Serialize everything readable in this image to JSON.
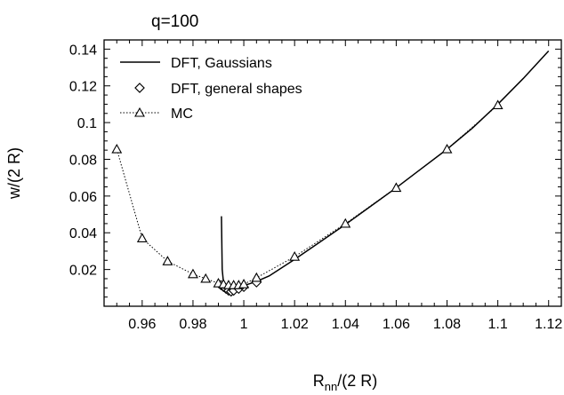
{
  "chart_data": {
    "type": "line",
    "title": "q=100",
    "xlabel_main": "R",
    "xlabel_sub": "nn",
    "xlabel_rest": "/(2 R)",
    "ylabel": "w/(2 R)",
    "xlim": [
      0.945,
      1.125
    ],
    "ylim": [
      0.0,
      0.145
    ],
    "x_ticks": [
      0.96,
      0.98,
      1.0,
      1.02,
      1.04,
      1.06,
      1.08,
      1.1,
      1.12
    ],
    "x_tick_labels": [
      "0.96",
      "0.98",
      "1",
      "1.02",
      "1.04",
      "1.06",
      "1.08",
      "1.1",
      "1.12"
    ],
    "y_ticks": [
      0.02,
      0.04,
      0.06,
      0.08,
      0.1,
      0.12,
      0.14
    ],
    "y_tick_labels": [
      "0.02",
      "0.04",
      "0.06",
      "0.08",
      "0.1",
      "0.12",
      "0.14"
    ],
    "grid": false,
    "legend_position": "top-left",
    "series": [
      {
        "name": "DFT, Gaussians",
        "style": "solid",
        "marker": "none",
        "x": [
          0.9912,
          0.9915,
          0.992,
          0.993,
          0.995,
          0.998,
          1.0,
          1.005,
          1.01,
          1.02,
          1.03,
          1.04,
          1.05,
          1.06,
          1.07,
          1.08,
          1.09,
          1.1,
          1.11,
          1.12
        ],
        "y": [
          0.049,
          0.02,
          0.013,
          0.0105,
          0.0098,
          0.0103,
          0.0112,
          0.0135,
          0.0165,
          0.0255,
          0.035,
          0.0445,
          0.0545,
          0.0645,
          0.075,
          0.0855,
          0.097,
          0.11,
          0.124,
          0.139
        ]
      },
      {
        "name": "DFT, general shapes",
        "style": "none",
        "marker": "diamond",
        "x": [
          0.991,
          0.992,
          0.993,
          0.994,
          0.995,
          0.996,
          0.998,
          1.0,
          1.005
        ],
        "y": [
          0.0115,
          0.0105,
          0.0095,
          0.0085,
          0.008,
          0.0085,
          0.0095,
          0.0105,
          0.013
        ]
      },
      {
        "name": "MC",
        "style": "dotted",
        "marker": "triangle",
        "x": [
          0.95,
          0.96,
          0.97,
          0.98,
          0.985,
          0.99,
          0.992,
          0.994,
          0.996,
          0.998,
          1.0,
          1.005,
          1.02,
          1.04,
          1.06,
          1.08,
          1.1
        ],
        "y": [
          0.0855,
          0.037,
          0.0245,
          0.0175,
          0.015,
          0.0125,
          0.012,
          0.0115,
          0.0115,
          0.0115,
          0.012,
          0.0155,
          0.027,
          0.045,
          0.0645,
          0.0855,
          0.1095
        ]
      }
    ]
  }
}
